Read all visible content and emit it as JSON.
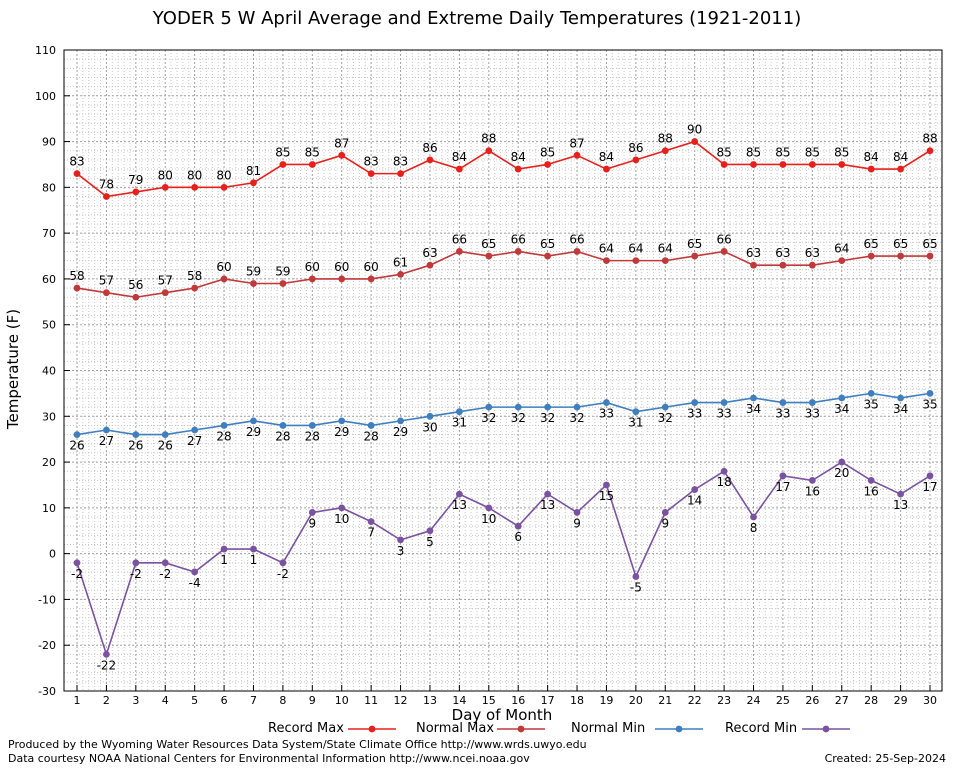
{
  "chart_data": {
    "type": "line",
    "title": "YODER 5 W April Average and Extreme Daily Temperatures (1921-2011)",
    "xlabel": "Day of Month",
    "ylabel": "Temperature (F)",
    "xlim": [
      1,
      30
    ],
    "ylim": [
      -30,
      110
    ],
    "y_ticks": [
      -30,
      -20,
      -10,
      0,
      10,
      20,
      30,
      40,
      50,
      60,
      70,
      80,
      90,
      100,
      110
    ],
    "x": [
      1,
      2,
      3,
      4,
      5,
      6,
      7,
      8,
      9,
      10,
      11,
      12,
      13,
      14,
      15,
      16,
      17,
      18,
      19,
      20,
      21,
      22,
      23,
      24,
      25,
      26,
      27,
      28,
      29,
      30
    ],
    "grid": true,
    "legend_position": "bottom",
    "series": [
      {
        "name": "Record Max",
        "color": "#e8201c",
        "label_pos": "above",
        "values": [
          83,
          78,
          79,
          80,
          80,
          80,
          81,
          85,
          85,
          87,
          83,
          83,
          86,
          84,
          88,
          84,
          85,
          87,
          84,
          86,
          88,
          90,
          85,
          85,
          85,
          85,
          85,
          84,
          84,
          88
        ]
      },
      {
        "name": "Normal Max",
        "color": "#c0393b",
        "label_pos": "above",
        "values": [
          58,
          57,
          56,
          57,
          58,
          60,
          59,
          59,
          60,
          60,
          60,
          61,
          63,
          66,
          65,
          66,
          65,
          66,
          64,
          64,
          64,
          65,
          66,
          63,
          63,
          63,
          64,
          65,
          65,
          65
        ]
      },
      {
        "name": "Normal Min",
        "color": "#3f7fbf",
        "label_pos": "below",
        "values": [
          26,
          27,
          26,
          26,
          27,
          28,
          29,
          28,
          28,
          29,
          28,
          29,
          30,
          31,
          32,
          32,
          32,
          32,
          33,
          31,
          32,
          33,
          33,
          34,
          33,
          33,
          34,
          35,
          34,
          35
        ]
      },
      {
        "name": "Record Min",
        "color": "#7b52a0",
        "label_pos": "below",
        "values": [
          -2,
          -22,
          -2,
          -2,
          -4,
          1,
          1,
          -2,
          9,
          10,
          7,
          3,
          5,
          13,
          10,
          6,
          13,
          9,
          15,
          -5,
          9,
          14,
          18,
          8,
          17,
          16,
          20,
          16,
          13,
          17
        ]
      }
    ]
  },
  "footer": {
    "credit_line1": "Produced by the Wyoming Water Resources Data System/State Climate Office http://www.wrds.uwyo.edu",
    "credit_line2": "Data courtesy NOAA National Centers for Environmental Information http://www.ncei.noaa.gov",
    "created": "Created:  25-Sep-2024"
  }
}
